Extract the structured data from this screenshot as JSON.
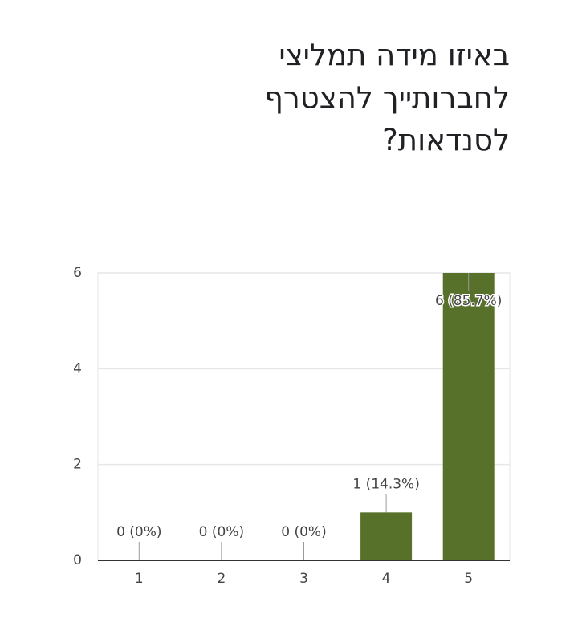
{
  "chart_data": {
    "type": "bar",
    "title": "באיזו מידה תמליצי לחברותייך להצטרף לסנדאות?",
    "categories": [
      "1",
      "2",
      "3",
      "4",
      "5"
    ],
    "values": [
      0,
      0,
      0,
      1,
      6
    ],
    "value_labels": [
      "0 (0%)",
      "0 (0%)",
      "0 (0%)",
      "1 (14.3%)",
      "6 (85.7%)"
    ],
    "color": "#58712a",
    "ylim": [
      0,
      6
    ],
    "yticks": [
      0,
      2,
      4,
      6
    ],
    "grid": true
  }
}
